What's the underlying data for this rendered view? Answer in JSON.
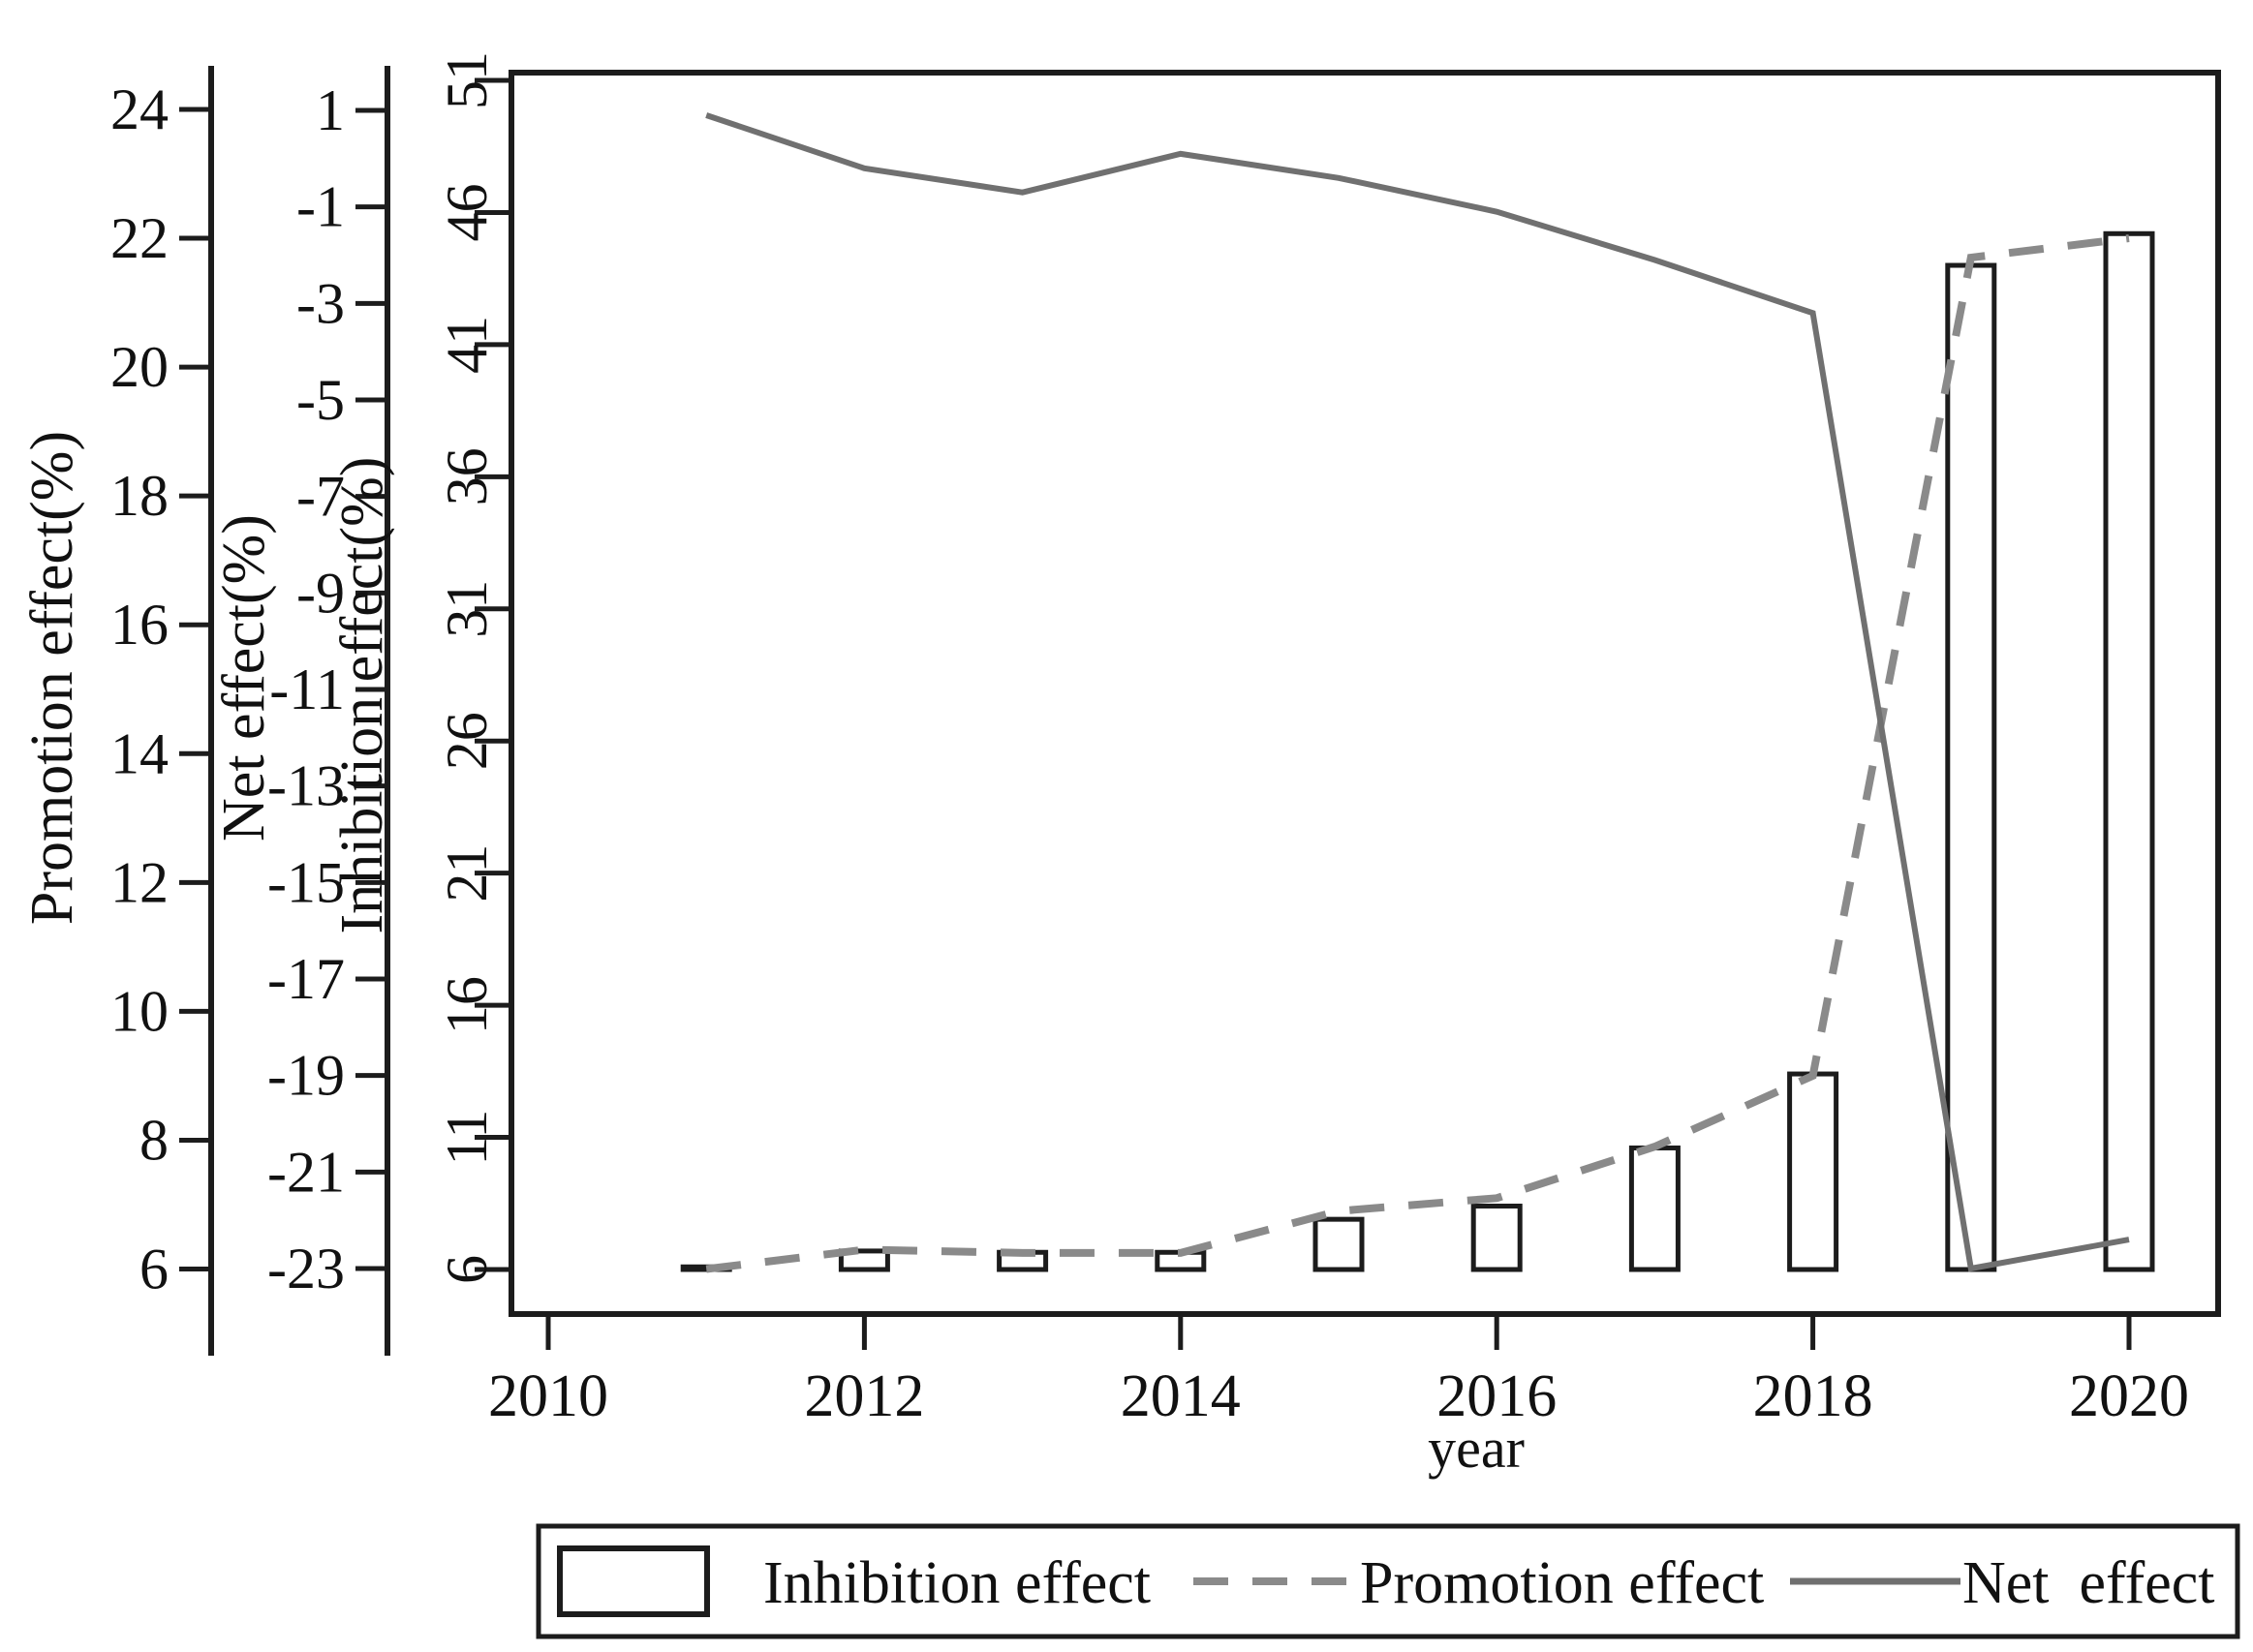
{
  "figure": {
    "xlabel": "year",
    "x_tick_labels": [
      "2010",
      "2012",
      "2014",
      "2016",
      "2018",
      "2020"
    ],
    "axes": {
      "promotion": {
        "title": "Promotion effect(%)",
        "ticks": [
          24,
          22,
          20,
          18,
          16,
          14,
          12,
          10,
          8,
          6
        ]
      },
      "net": {
        "title": "Net effect(%)",
        "ticks": [
          1,
          -1,
          -3,
          -5,
          -7,
          -9,
          -11,
          -13,
          -15,
          -17,
          -19,
          -21,
          -23
        ]
      },
      "inhibition": {
        "title": "Inhibition effect(%)",
        "ticks": [
          51,
          46,
          41,
          36,
          31,
          26,
          21,
          16,
          11,
          6
        ]
      }
    },
    "legend": {
      "items": [
        {
          "swatch": "bar",
          "label": "Inhibition effect"
        },
        {
          "swatch": "dashed",
          "label": "Promotion effect"
        },
        {
          "swatch": "solid",
          "label": "Net  effect"
        }
      ]
    },
    "colors": {
      "frame": "#1c1c1c",
      "bar_fill": "#ffffff",
      "bar_border": "#1c1c1c",
      "dashed_line": "#8a8a8a",
      "solid_line": "#707070",
      "text": "#111111"
    }
  },
  "chart_data": {
    "type": "combo-bar-line",
    "title": "",
    "xlabel": "year",
    "x": [
      2011,
      2012,
      2013,
      2014,
      2015,
      2016,
      2017,
      2018,
      2019,
      2020
    ],
    "x_axis_range": [
      2009.6,
      2020.6
    ],
    "x_ticks": [
      2010,
      2012,
      2014,
      2016,
      2018,
      2020
    ],
    "series": [
      {
        "name": "Inhibition effect",
        "type": "bar",
        "axis": "inhibition",
        "axis_label": "Inhibition effect(%)",
        "axis_ticks": [
          51,
          46,
          41,
          36,
          31,
          26,
          21,
          16,
          11,
          6
        ],
        "bar_base_value": 6,
        "values": [
          6.1,
          6.7,
          6.65,
          6.65,
          7.9,
          8.4,
          10.6,
          13.4,
          44.0,
          45.2
        ]
      },
      {
        "name": "Promotion effect",
        "type": "line-dashed",
        "axis": "promotion",
        "axis_label": "Promotion effect(%)",
        "axis_ticks": [
          24,
          22,
          20,
          18,
          16,
          14,
          12,
          10,
          8,
          6
        ],
        "values": [
          6.0,
          6.3,
          6.25,
          6.25,
          6.9,
          7.1,
          7.9,
          9.0,
          21.7,
          22.0
        ]
      },
      {
        "name": "Net effect",
        "type": "line-solid",
        "axis": "net",
        "axis_label": "Net effect(%)",
        "axis_ticks": [
          1,
          -1,
          -3,
          -5,
          -7,
          -9,
          -11,
          -13,
          -15,
          -17,
          -19,
          -21,
          -23
        ],
        "values": [
          0.9,
          -0.2,
          -0.7,
          0.1,
          -0.4,
          -1.1,
          -2.1,
          -3.2,
          -23.0,
          -22.4
        ]
      }
    ],
    "legend_position": "bottom",
    "grid": false
  }
}
